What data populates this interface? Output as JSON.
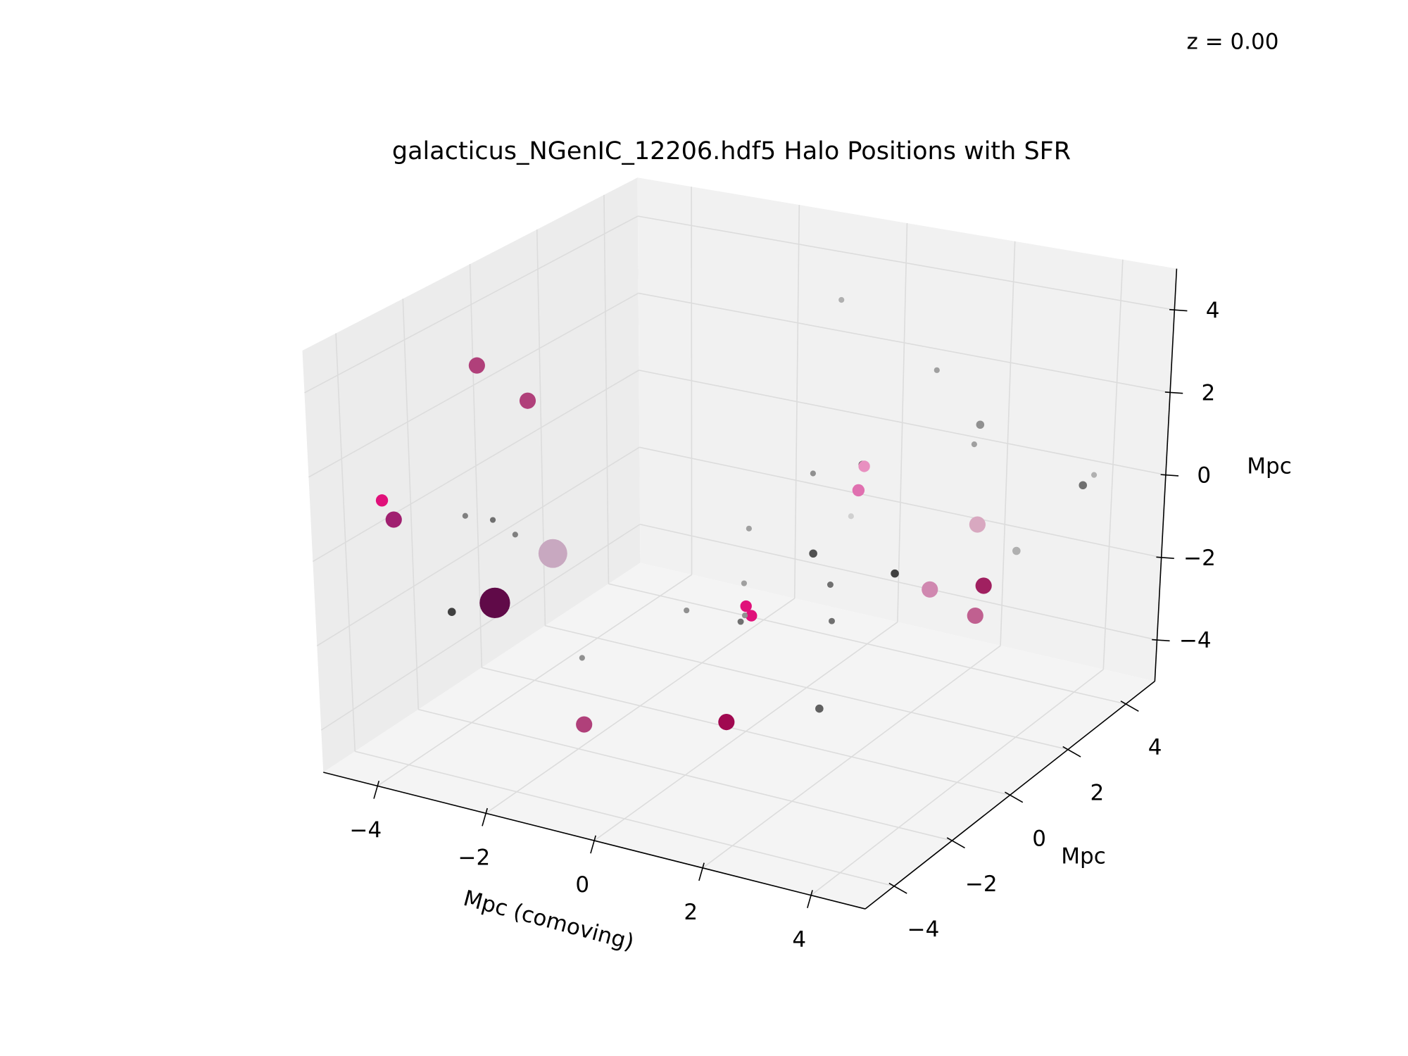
{
  "chart_data": {
    "type": "scatter3d",
    "title": "galacticus_NGenIC_12206.hdf5 Halo Positions with SFR",
    "annotation": "z = 0.00",
    "xlabel": "Mpc (comoving)",
    "ylabel": "Mpc",
    "zlabel": "Mpc",
    "x": [
      -3.1,
      -2.8,
      -4.3,
      -4.1,
      -3.0,
      -2.9,
      -3.1,
      -4.0,
      -4.1,
      -4.3,
      -1.9,
      -1.3,
      1.9,
      2.5,
      -1.7,
      0.0,
      0.1,
      -1.2,
      -0.1,
      -0.6,
      -1.7,
      0.1,
      1.0,
      1.6,
      -0.5,
      1.0,
      1.6,
      1.5,
      0.8,
      -0.6,
      1.2,
      2.6,
      2.5,
      2.2,
      4.8,
      4.5,
      4.4,
      4.8,
      3.9,
      4.0,
      4.2
    ],
    "y": [
      -3,
      -2,
      -4,
      -4,
      -1,
      -3,
      -4,
      -2,
      -1,
      0,
      -2,
      -3,
      -4,
      -2,
      1,
      0,
      0,
      2,
      0,
      1,
      3,
      2,
      1,
      0,
      3,
      2,
      1,
      1,
      2,
      4,
      4,
      3,
      3,
      1,
      -1,
      -2,
      0,
      -1,
      2,
      4,
      4
    ],
    "z": [
      4.3,
      3.1,
      1.2,
      0.8,
      -1.1,
      -1.3,
      -1.1,
      0.0,
      -0.6,
      -1.5,
      -2.8,
      -3.7,
      -2.2,
      -2.7,
      -3.1,
      -2.0,
      -2.2,
      -2.8,
      -2.4,
      -2.9,
      -2.1,
      -1.7,
      -1.7,
      -1.9,
      -0.4,
      0.7,
      1.3,
      0.7,
      -0.6,
      3.4,
      2.1,
      1.6,
      1.1,
      -1.1,
      1.7,
      0.6,
      -0.3,
      -0.4,
      -0.6,
      0.0,
      0.3
    ],
    "sizes": [
      80,
      80,
      45,
      80,
      250,
      280,
      20,
      10,
      10,
      10,
      10,
      80,
      80,
      20,
      10,
      40,
      40,
      10,
      12,
      10,
      10,
      20,
      12,
      12,
      10,
      20,
      40,
      45,
      10,
      10,
      10,
      20,
      10,
      20,
      80,
      80,
      80,
      80,
      20,
      20,
      10
    ],
    "colors": [
      "#b0407a",
      "#b0407a",
      "#e0107a",
      "#a02070",
      "#c8a8c0",
      "#600a48",
      "#404040",
      "#808080",
      "#707070",
      "#808080",
      "#909090",
      "#b0407a",
      "#a00850",
      "#606060",
      "#909090",
      "#e0107a",
      "#e0107a",
      "#a0a0a0",
      "#707070",
      "#909090",
      "#a0a0a0",
      "#505050",
      "#707070",
      "#707070",
      "#909090",
      "#505050",
      "#e890c0",
      "#e070b0",
      "#d0d0d0",
      "#b0b0b0",
      "#a0a0a0",
      "#909090",
      "#a0a0a0",
      "#404040",
      "#d8a8c0",
      "#d088b0",
      "#a02060",
      "#c06090",
      "#b0b0b0",
      "#707070",
      "#b0b0b0"
    ],
    "xlim": [
      -5,
      5
    ],
    "ylim": [
      -5,
      5
    ],
    "zlim": [
      -5,
      5
    ],
    "xticks": [
      {
        "value": -4,
        "label": "−4"
      },
      {
        "value": -2,
        "label": "−2"
      },
      0,
      2,
      4
    ],
    "yticks": [
      {
        "value": -4,
        "label": "−4"
      },
      {
        "value": -2,
        "label": "−2"
      },
      0,
      2,
      4
    ],
    "zticks": [
      {
        "value": -4,
        "label": "−4"
      },
      {
        "value": -2,
        "label": "−2"
      },
      0,
      2,
      4
    ],
    "grid": true
  }
}
